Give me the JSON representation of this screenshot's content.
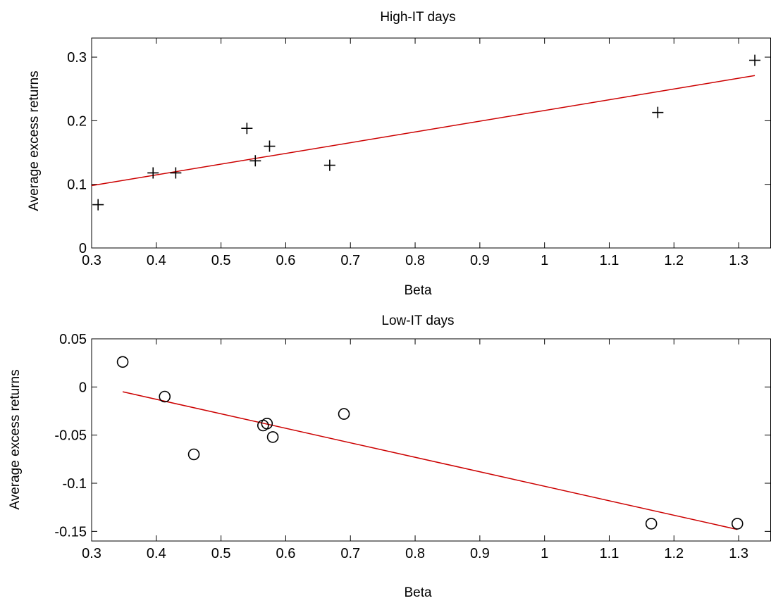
{
  "chart_data": [
    {
      "type": "scatter",
      "title": "High-IT days",
      "xlabel": "Beta",
      "ylabel": "Average excess returns",
      "xlim": [
        0.3,
        1.35
      ],
      "ylim": [
        0,
        0.33
      ],
      "xticks": [
        "0.3",
        "0.4",
        "0.5",
        "0.6",
        "0.7",
        "0.8",
        "0.9",
        "1",
        "1.1",
        "1.2",
        "1.3"
      ],
      "yticks": [
        "0",
        "0.1",
        "0.2",
        "0.3"
      ],
      "marker": "plus",
      "points": [
        {
          "x": 0.31,
          "y": 0.068
        },
        {
          "x": 0.395,
          "y": 0.118
        },
        {
          "x": 0.43,
          "y": 0.118
        },
        {
          "x": 0.54,
          "y": 0.188
        },
        {
          "x": 0.553,
          "y": 0.137
        },
        {
          "x": 0.575,
          "y": 0.16
        },
        {
          "x": 0.668,
          "y": 0.13
        },
        {
          "x": 1.175,
          "y": 0.213
        },
        {
          "x": 1.325,
          "y": 0.295
        }
      ],
      "fit_line": {
        "x": [
          0.3,
          1.325
        ],
        "y": [
          0.098,
          0.271
        ],
        "color": "#cc0000"
      }
    },
    {
      "type": "scatter",
      "title": "Low-IT days",
      "xlabel": "Beta",
      "ylabel": "Average excess returns",
      "xlim": [
        0.3,
        1.35
      ],
      "ylim": [
        -0.16,
        0.05
      ],
      "xticks": [
        "0.3",
        "0.4",
        "0.5",
        "0.6",
        "0.7",
        "0.8",
        "0.9",
        "1",
        "1.1",
        "1.2",
        "1.3"
      ],
      "yticks": [
        "-0.15",
        "-0.1",
        "-0.05",
        "0",
        "0.05"
      ],
      "marker": "circle",
      "points": [
        {
          "x": 0.348,
          "y": 0.026
        },
        {
          "x": 0.413,
          "y": -0.01
        },
        {
          "x": 0.458,
          "y": -0.07
        },
        {
          "x": 0.565,
          "y": -0.04
        },
        {
          "x": 0.571,
          "y": -0.038
        },
        {
          "x": 0.58,
          "y": -0.052
        },
        {
          "x": 0.69,
          "y": -0.028
        },
        {
          "x": 1.165,
          "y": -0.142
        },
        {
          "x": 1.298,
          "y": -0.142
        }
      ],
      "fit_line": {
        "x": [
          0.348,
          1.298
        ],
        "y": [
          -0.005,
          -0.148
        ],
        "color": "#cc0000"
      }
    }
  ]
}
